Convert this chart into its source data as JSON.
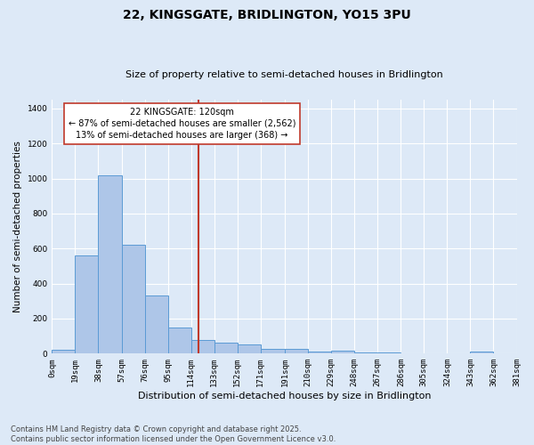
{
  "title": "22, KINGSGATE, BRIDLINGTON, YO15 3PU",
  "subtitle": "Size of property relative to semi-detached houses in Bridlington",
  "xlabel": "Distribution of semi-detached houses by size in Bridlington",
  "ylabel": "Number of semi-detached properties",
  "bar_edges": [
    0,
    19,
    38,
    57,
    76,
    95,
    114,
    133,
    152,
    171,
    191,
    210,
    229,
    248,
    267,
    286,
    305,
    324,
    343,
    362,
    381
  ],
  "bar_labels": [
    "0sqm",
    "19sqm",
    "38sqm",
    "57sqm",
    "76sqm",
    "95sqm",
    "114sqm",
    "133sqm",
    "152sqm",
    "171sqm",
    "191sqm",
    "210sqm",
    "229sqm",
    "248sqm",
    "267sqm",
    "286sqm",
    "305sqm",
    "324sqm",
    "343sqm",
    "362sqm",
    "381sqm"
  ],
  "bar_values": [
    20,
    560,
    1020,
    620,
    330,
    150,
    80,
    65,
    50,
    25,
    25,
    10,
    15,
    5,
    5,
    0,
    0,
    0,
    10,
    0
  ],
  "bar_color": "#aec6e8",
  "bar_edge_color": "#5b9bd5",
  "vline_x": 120,
  "vline_color": "#c0392b",
  "annotation_line1": "22 KINGSGATE: 120sqm",
  "annotation_line2": "← 87% of semi-detached houses are smaller (2,562)",
  "annotation_line3": "13% of semi-detached houses are larger (368) →",
  "annotation_box_color": "#ffffff",
  "annotation_box_edge": "#c0392b",
  "ylim": [
    0,
    1450
  ],
  "yticks": [
    0,
    200,
    400,
    600,
    800,
    1000,
    1200,
    1400
  ],
  "bg_color": "#dde9f7",
  "plot_bg_color": "#dde9f7",
  "footer": "Contains HM Land Registry data © Crown copyright and database right 2025.\nContains public sector information licensed under the Open Government Licence v3.0.",
  "title_fontsize": 10,
  "subtitle_fontsize": 8,
  "xlabel_fontsize": 8,
  "ylabel_fontsize": 7.5,
  "tick_fontsize": 6.5,
  "annotation_fontsize": 7,
  "footer_fontsize": 6
}
